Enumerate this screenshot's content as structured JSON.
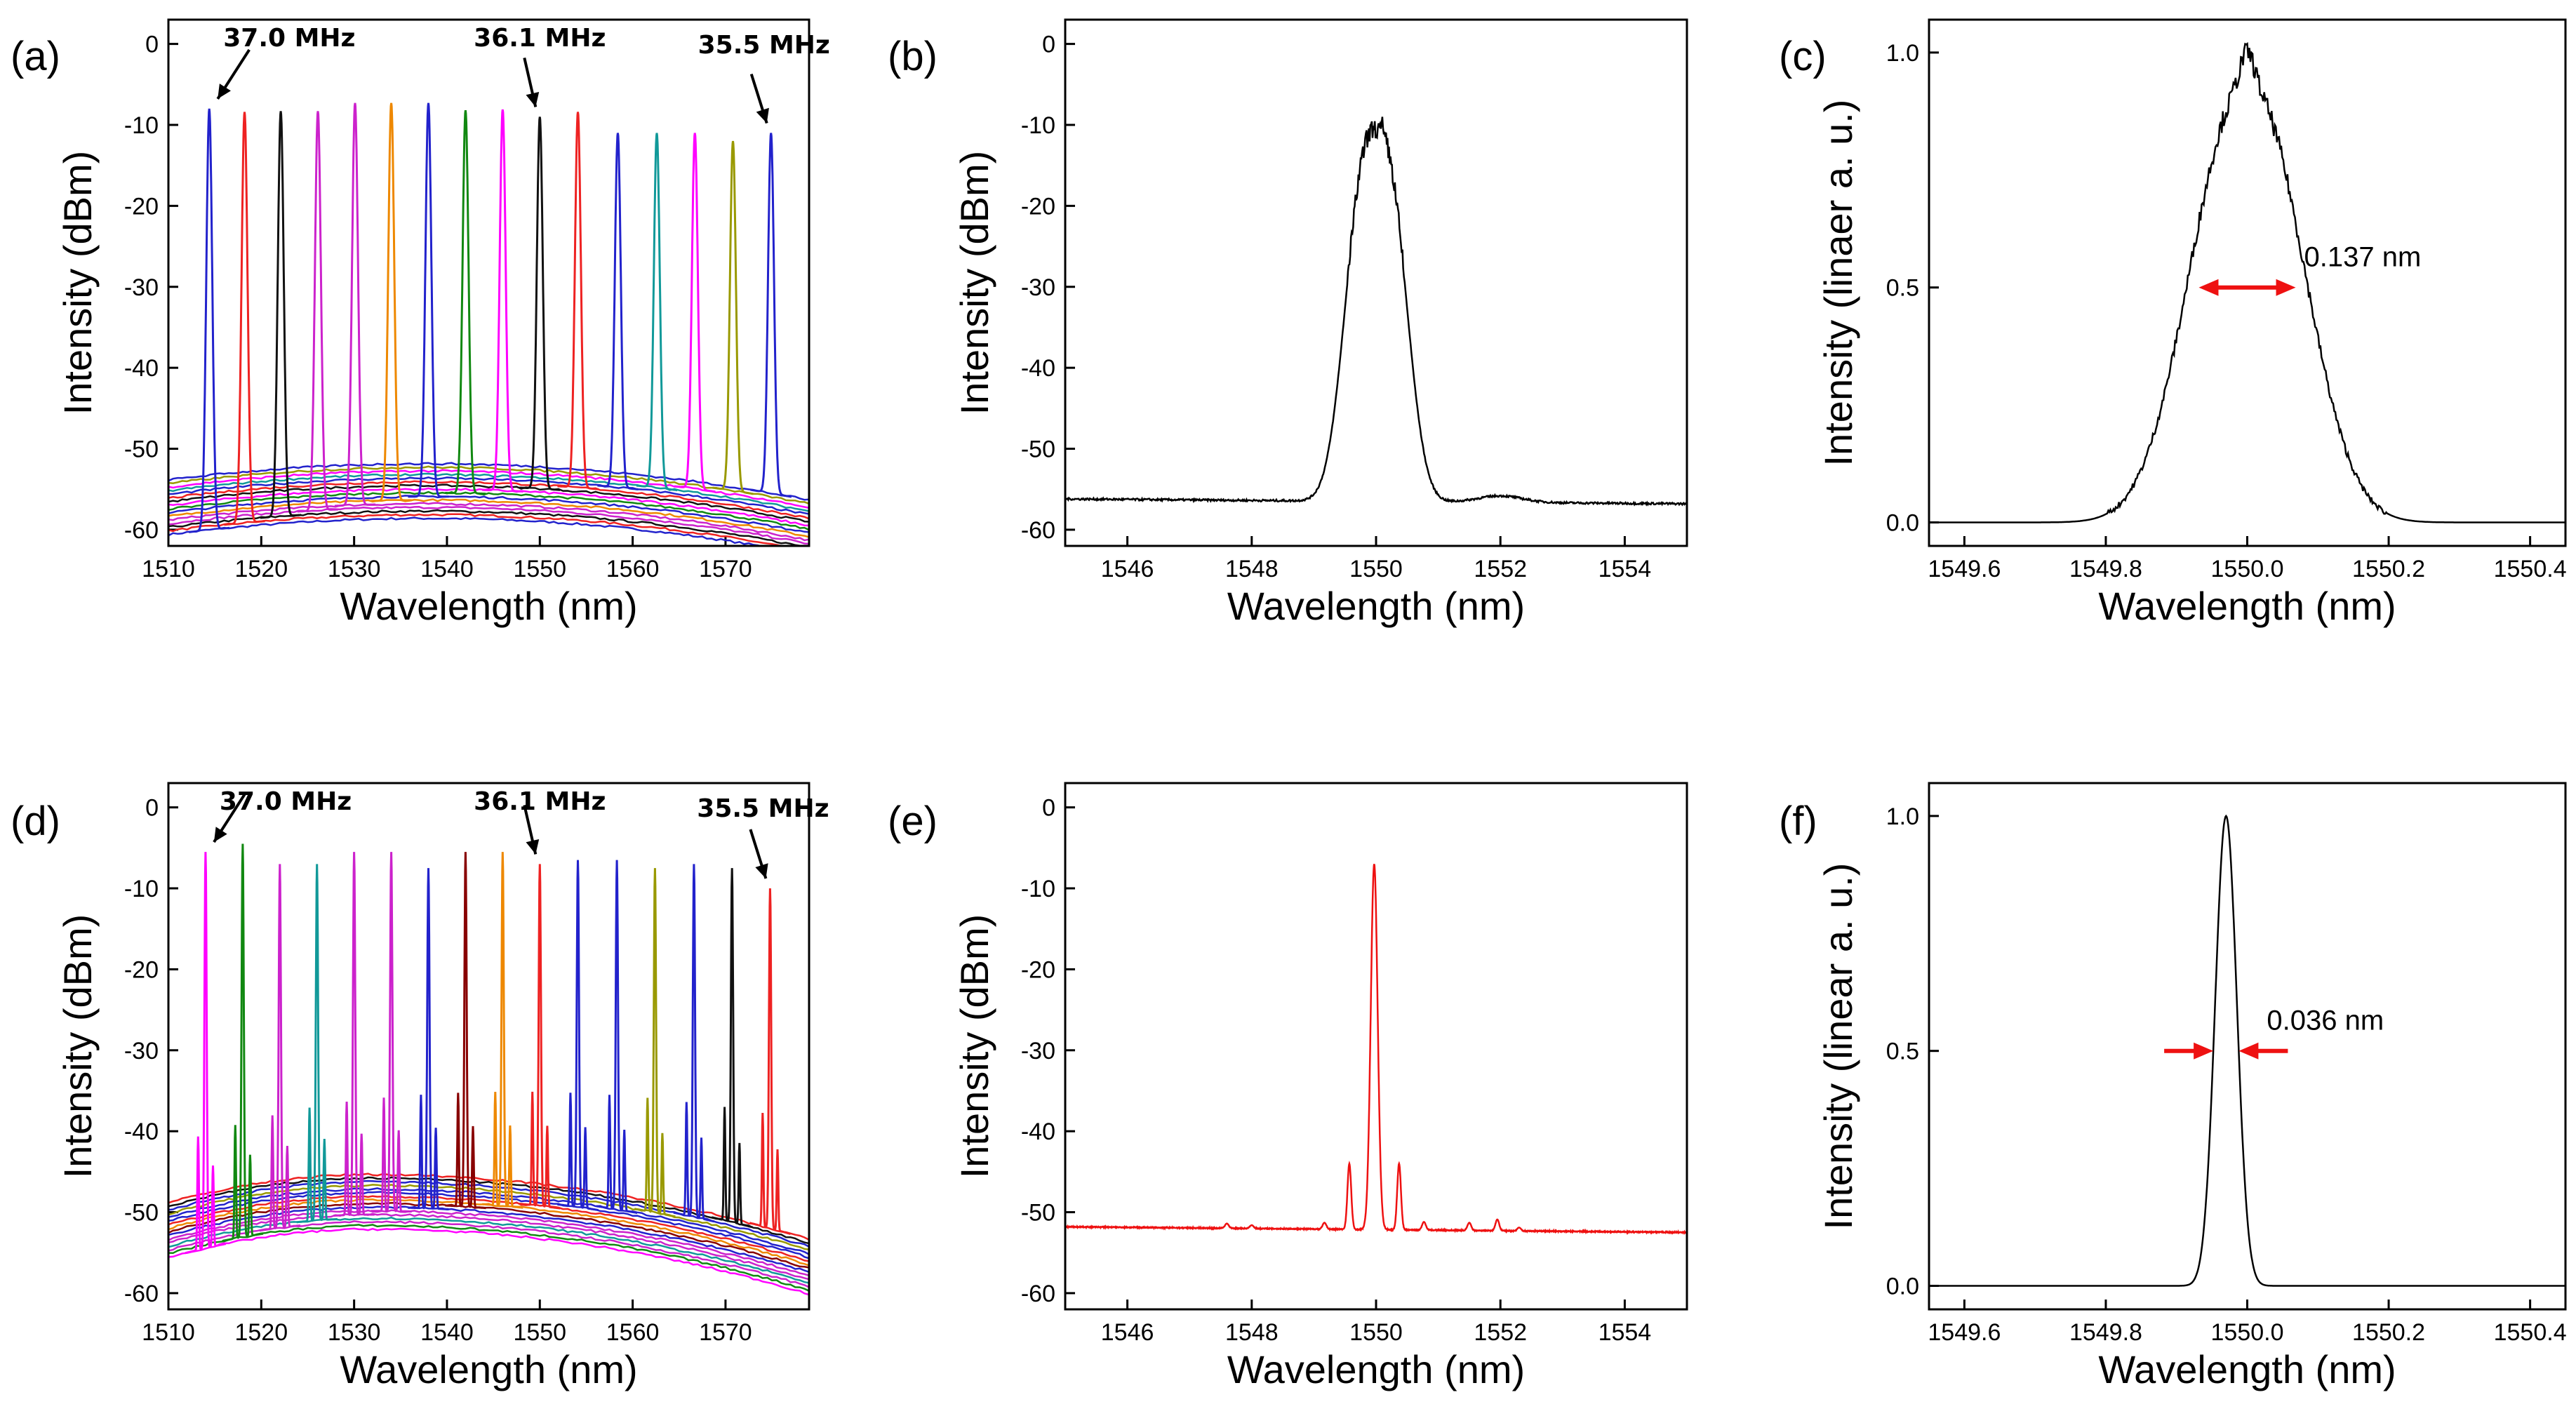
{
  "chart_data": [
    {
      "panel": "(a)",
      "type": "line",
      "xlabel": "Wavelength (nm)",
      "ylabel": "Intensity (dBm)",
      "xlim": [
        1510,
        1579
      ],
      "ylim": [
        -62,
        3
      ],
      "xticks": [
        1510,
        1520,
        1530,
        1540,
        1550,
        1560,
        1570
      ],
      "yticks": [
        0,
        -10,
        -20,
        -30,
        -40,
        -50,
        -60
      ],
      "peaks_x": [
        1514.4,
        1518.2,
        1522.1,
        1526.1,
        1530.1,
        1534.0,
        1538.0,
        1542.0,
        1546.0,
        1550.0,
        1554.1,
        1558.4,
        1562.6,
        1566.7,
        1570.8,
        1574.9
      ],
      "peaks_y": [
        -8,
        -8.4,
        -8.3,
        -8.3,
        -7.3,
        -7.3,
        -7.3,
        -8.2,
        -8.1,
        -9,
        -8.4,
        -11,
        -11,
        -11,
        -12,
        -11
      ],
      "colors": [
        "#2222cc",
        "#ee2222",
        "#111111",
        "#cc22cc",
        "#cc22cc",
        "#ee8800",
        "#2222cc",
        "#118811",
        "#ff00ff",
        "#111111",
        "#ee2222",
        "#2222cc",
        "#119999",
        "#ff00ff",
        "#999900",
        "#2222cc"
      ],
      "baseline_start": -57,
      "baseline_peak": -55,
      "baseline_peak_x": 1538,
      "baseline_end": -59.5,
      "annotations": [
        {
          "text": "37.0 MHz",
          "x": 1514.4,
          "y": -8
        },
        {
          "text": "36.1 MHz",
          "x": 1550.0,
          "y": -9
        },
        {
          "text": "35.5 MHz",
          "x": 1574.9,
          "y": -11
        }
      ]
    },
    {
      "panel": "(b)",
      "type": "line",
      "xlabel": "Wavelength (nm)",
      "ylabel": "Intensity (dBm)",
      "xlim": [
        1545,
        1555
      ],
      "ylim": [
        -62,
        3
      ],
      "xticks": [
        1546,
        1548,
        1550,
        1552,
        1554
      ],
      "yticks": [
        0,
        -10,
        -20,
        -30,
        -40,
        -50,
        -60
      ],
      "color": "#000000",
      "center_x": 1550.0,
      "peak_y": -9,
      "baseline_y": -56.5,
      "fwhm_nm": 1.2,
      "bumps": [
        {
          "x": 1552.0,
          "y": -55.5
        }
      ]
    },
    {
      "panel": "(c)",
      "type": "line",
      "xlabel": "Wavelength (nm)",
      "ylabel": "Intensity (linaer a. u.)",
      "xlim": [
        1549.55,
        1550.45
      ],
      "ylim": [
        -0.05,
        1.07
      ],
      "xticks": [
        1549.6,
        1549.8,
        1550.0,
        1550.2,
        1550.4
      ],
      "yticks": [
        0.0,
        0.5,
        1.0
      ],
      "color": "#000000",
      "center_x": 1550.0,
      "peak_y": 1.0,
      "fwhm_nm": 0.137,
      "annotation": {
        "text": "0.137 nm",
        "color": "#ee1111"
      }
    },
    {
      "panel": "(d)",
      "type": "line",
      "xlabel": "Wavelength (nm)",
      "ylabel": "Intensity (dBm)",
      "xlim": [
        1510,
        1579
      ],
      "ylim": [
        -62,
        3
      ],
      "xticks": [
        1510,
        1520,
        1530,
        1540,
        1550,
        1560,
        1570
      ],
      "yticks": [
        0,
        -10,
        -20,
        -30,
        -40,
        -50,
        -60
      ],
      "peaks_x": [
        1514.0,
        1518.0,
        1522.0,
        1526.0,
        1530.0,
        1534.0,
        1538.0,
        1542.0,
        1546.0,
        1550.0,
        1554.1,
        1558.3,
        1562.4,
        1566.6,
        1570.7,
        1574.8
      ],
      "peaks_y": [
        -5.5,
        -4.5,
        -7,
        -7,
        -5.5,
        -5.5,
        -7.5,
        -5.5,
        -5.5,
        -7,
        -6.5,
        -6.5,
        -7.5,
        -7,
        -7.5,
        -10
      ],
      "colors": [
        "#ff00ff",
        "#118811",
        "#cc22cc",
        "#119999",
        "#cc22cc",
        "#cc22cc",
        "#2222cc",
        "#880000",
        "#ee8800",
        "#ee2222",
        "#2222cc",
        "#2222cc",
        "#999900",
        "#2222cc",
        "#111111",
        "#ee2222"
      ],
      "baseline_start": -52,
      "baseline_peak": -48.5,
      "baseline_peak_x": 1532,
      "baseline_end": -56.5,
      "annotations": [
        {
          "text": "37.0 MHz",
          "x": 1514.0,
          "y": -5.5
        },
        {
          "text": "36.1 MHz",
          "x": 1550.0,
          "y": -7
        },
        {
          "text": "35.5 MHz",
          "x": 1574.8,
          "y": -10
        }
      ]
    },
    {
      "panel": "(e)",
      "type": "line",
      "xlabel": "Wavelength (nm)",
      "ylabel": "Intensity (dBm)",
      "xlim": [
        1545,
        1555
      ],
      "ylim": [
        -62,
        3
      ],
      "xticks": [
        1546,
        1548,
        1550,
        1552,
        1554
      ],
      "yticks": [
        0,
        -10,
        -20,
        -30,
        -40,
        -50,
        -60
      ],
      "color": "#ee1111",
      "center_x": 1549.97,
      "peak_y": -7,
      "baseline_start": -51.8,
      "baseline_end": -52.5,
      "sidebands": [
        {
          "x": 1549.57,
          "y": -44
        },
        {
          "x": 1550.37,
          "y": -44
        },
        {
          "x": 1549.17,
          "y": -51.3
        },
        {
          "x": 1550.77,
          "y": -51.2
        },
        {
          "x": 1547.6,
          "y": -51.4
        },
        {
          "x": 1548.0,
          "y": -51.6
        },
        {
          "x": 1551.5,
          "y": -51.3
        },
        {
          "x": 1551.95,
          "y": -50.9
        },
        {
          "x": 1552.3,
          "y": -51.9
        }
      ]
    },
    {
      "panel": "(f)",
      "type": "line",
      "xlabel": "Wavelength (nm)",
      "ylabel": "Intensity (linear a. u.)",
      "xlim": [
        1549.55,
        1550.45
      ],
      "ylim": [
        -0.05,
        1.07
      ],
      "xticks": [
        1549.6,
        1549.8,
        1550.0,
        1550.2,
        1550.4
      ],
      "yticks": [
        0.0,
        0.5,
        1.0
      ],
      "color": "#000000",
      "center_x": 1549.97,
      "peak_y": 1.0,
      "fwhm_nm": 0.036,
      "annotation": {
        "text": "0.036 nm",
        "color": "#ee1111"
      }
    }
  ]
}
